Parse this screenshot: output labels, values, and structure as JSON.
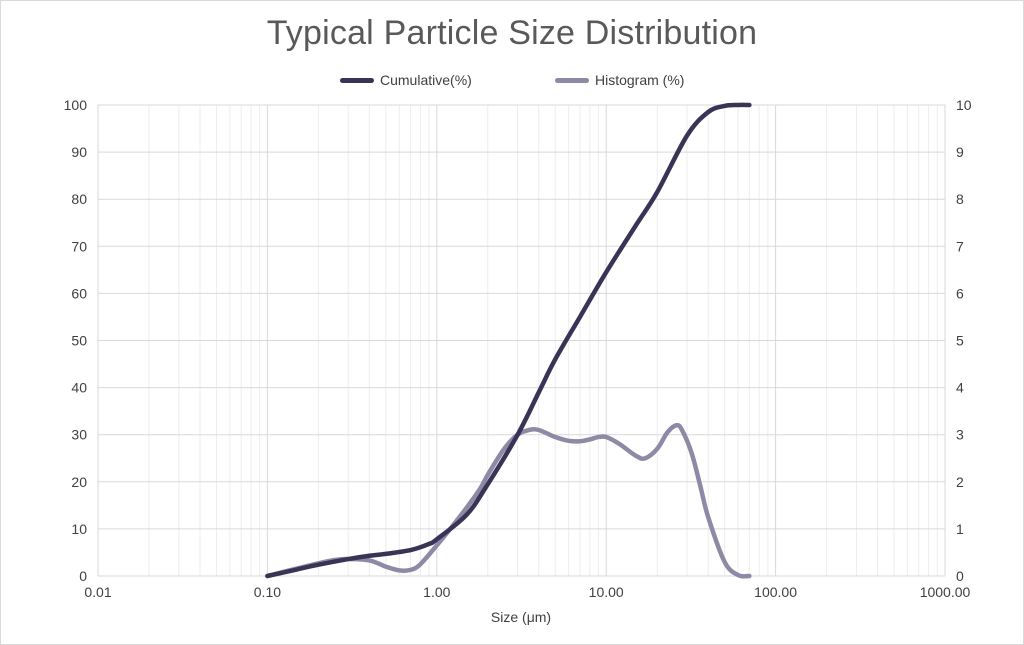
{
  "chart_data": {
    "type": "line",
    "title": "Typical Particle Size Distribution",
    "xlabel": "Size (μm)",
    "ylabel": "",
    "y2label": "",
    "xscale": "log",
    "xlim": [
      0.01,
      1000
    ],
    "ylim": [
      0,
      100
    ],
    "y2lim": [
      0,
      10
    ],
    "x_tick_labels": [
      "0.01",
      "0.10",
      "1.00",
      "10.00",
      "100.00",
      "1000.00"
    ],
    "x_tick_values": [
      0.01,
      0.1,
      1,
      10,
      100,
      1000
    ],
    "y_tick_labels": [
      "0",
      "10",
      "20",
      "30",
      "40",
      "50",
      "60",
      "70",
      "80",
      "90",
      "100"
    ],
    "y2_tick_labels": [
      "0",
      "1",
      "2",
      "3",
      "4",
      "5",
      "6",
      "7",
      "8",
      "9",
      "10"
    ],
    "legend_position": "top-center",
    "grid": true,
    "series": [
      {
        "name": "Cumulative(%)",
        "axis": "left",
        "color": "#3b3356",
        "x": [
          0.1,
          0.15,
          0.2,
          0.3,
          0.4,
          0.5,
          0.7,
          0.9,
          1.0,
          1.5,
          2.0,
          3.0,
          4.0,
          5.0,
          7.0,
          10.0,
          15.0,
          20.0,
          30.0,
          40.0,
          50.0,
          60.0,
          70.0
        ],
        "values": [
          0,
          1.4,
          2.4,
          3.6,
          4.3,
          4.7,
          5.5,
          6.8,
          7.8,
          13,
          19.5,
          30,
          39,
          46,
          55,
          64.5,
          74.5,
          81.5,
          93.5,
          98.5,
          99.8,
          100,
          100
        ]
      },
      {
        "name": "Histogram (%)",
        "axis": "right",
        "color": "#8e8aa5",
        "x": [
          0.1,
          0.15,
          0.2,
          0.25,
          0.3,
          0.4,
          0.5,
          0.6,
          0.7,
          0.8,
          1.0,
          1.2,
          1.5,
          1.8,
          2.0,
          2.5,
          3.0,
          3.5,
          4.0,
          5.0,
          6.0,
          7.0,
          8.0,
          9.0,
          10.0,
          12.0,
          15.0,
          17.0,
          20.0,
          23.0,
          26.0,
          28.0,
          32.0,
          36.0,
          40.0,
          50.0,
          60.0,
          70.0
        ],
        "values": [
          0,
          0.16,
          0.27,
          0.34,
          0.36,
          0.33,
          0.2,
          0.12,
          0.13,
          0.25,
          0.65,
          1.0,
          1.45,
          1.85,
          2.15,
          2.7,
          3.0,
          3.1,
          3.1,
          2.95,
          2.87,
          2.86,
          2.9,
          2.95,
          2.95,
          2.8,
          2.55,
          2.5,
          2.7,
          3.05,
          3.2,
          3.1,
          2.6,
          1.9,
          1.25,
          0.3,
          0.02,
          0
        ]
      }
    ]
  }
}
